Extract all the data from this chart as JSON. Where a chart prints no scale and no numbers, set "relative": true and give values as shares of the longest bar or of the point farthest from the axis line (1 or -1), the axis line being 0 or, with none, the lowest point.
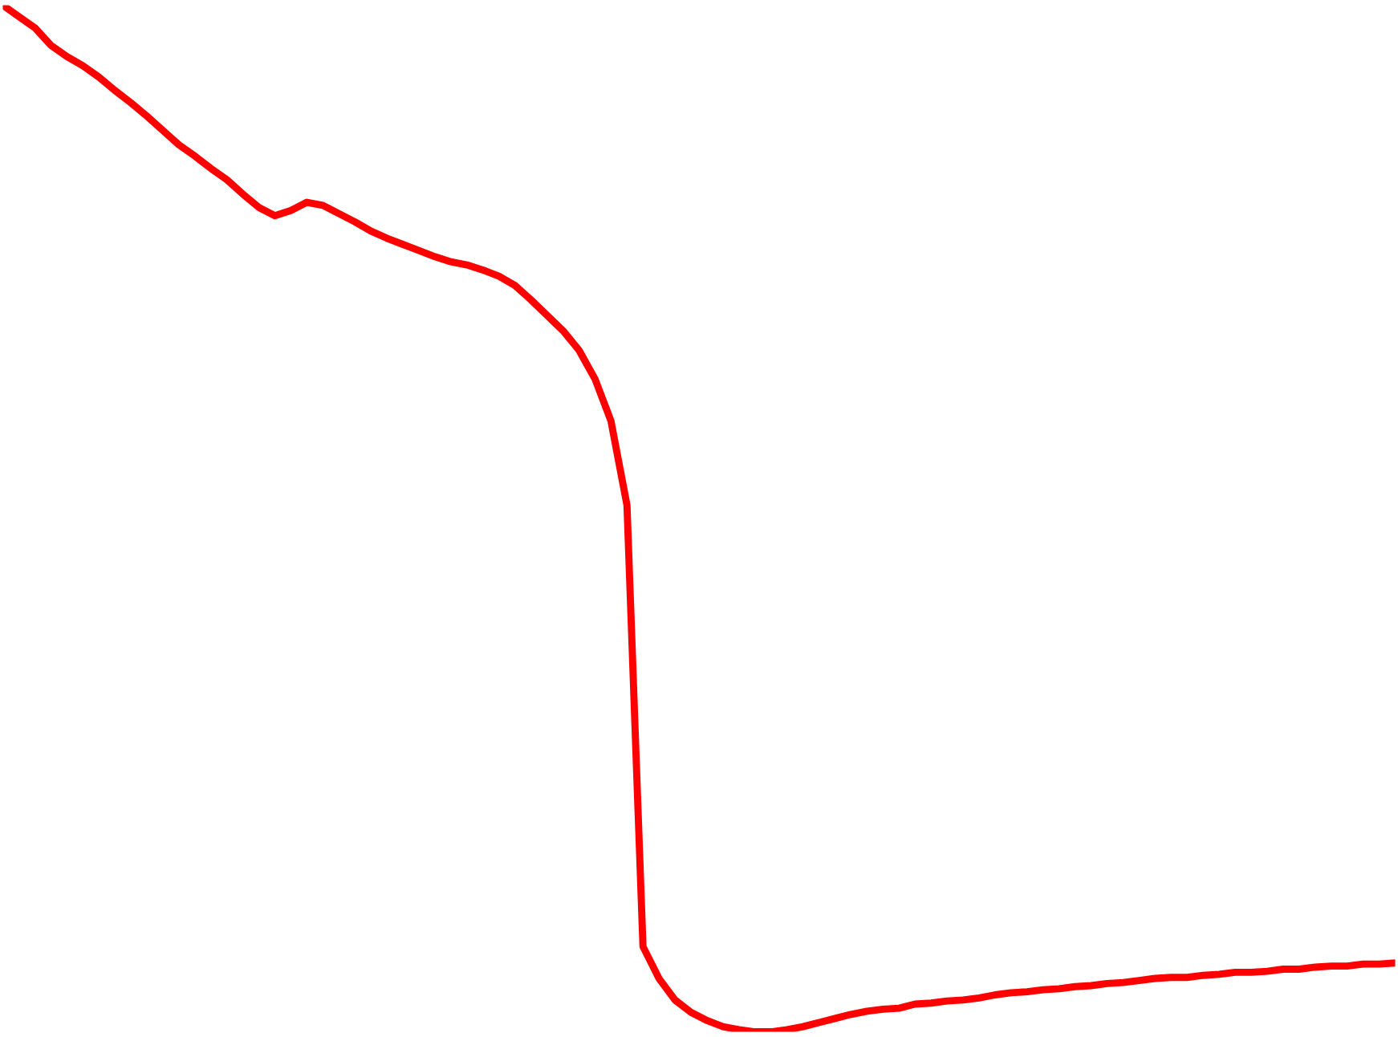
{
  "chart_data": {
    "type": "line",
    "relative": true,
    "legend": false,
    "marker": "none",
    "line_style": "solid",
    "categories": [
      null,
      null,
      null,
      null,
      null,
      null,
      null,
      null,
      null,
      null,
      null,
      null,
      null,
      null,
      null,
      null,
      null,
      null,
      null,
      null,
      null,
      null,
      null,
      null,
      null,
      null,
      null,
      null,
      null,
      null,
      null,
      null,
      null,
      null,
      null,
      null,
      null,
      null,
      null,
      null,
      null,
      null,
      null,
      null,
      null,
      null,
      null,
      null,
      null,
      null,
      null,
      null,
      null,
      null,
      null,
      null,
      null,
      null,
      null,
      null,
      null,
      null,
      null,
      null,
      null,
      null,
      null,
      null,
      null,
      null,
      null,
      null,
      null,
      null,
      null,
      null,
      null,
      null,
      null,
      null,
      null,
      null,
      null,
      null,
      null,
      null,
      null,
      null
    ],
    "series": [
      {
        "color": "#ff0000",
        "values": [
          1.0,
          0.989,
          0.978,
          0.961,
          0.95,
          0.941,
          0.93,
          0.917,
          0.905,
          0.892,
          0.878,
          0.864,
          0.853,
          0.841,
          0.83,
          0.816,
          0.803,
          0.795,
          0.8,
          0.808,
          0.805,
          0.797,
          0.789,
          0.78,
          0.773,
          0.767,
          0.761,
          0.755,
          0.75,
          0.747,
          0.742,
          0.736,
          0.727,
          0.713,
          0.698,
          0.683,
          0.664,
          0.636,
          0.595,
          0.513,
          0.083,
          0.052,
          0.031,
          0.019,
          0.011,
          0.005,
          0.002,
          0,
          0,
          0.002,
          0.005,
          0.009,
          0.013,
          0.017,
          0.02,
          0.022,
          0.023,
          0.027,
          0.028,
          0.03,
          0.031,
          0.033,
          0.036,
          0.038,
          0.039,
          0.041,
          0.042,
          0.044,
          0.045,
          0.047,
          0.048,
          0.05,
          0.052,
          0.053,
          0.053,
          0.055,
          0.056,
          0.058,
          0.058,
          0.059,
          0.061,
          0.061,
          0.063,
          0.064,
          0.064,
          0.066,
          0.066,
          0.067
        ]
      }
    ]
  }
}
